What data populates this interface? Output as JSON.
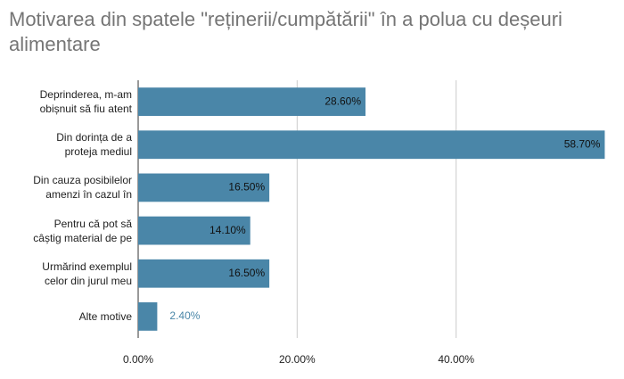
{
  "chart_data": {
    "type": "bar",
    "orientation": "horizontal",
    "title": "Motivarea din spatele \"reținerii/cumpătării\" în a polua cu deșeuri alimentare",
    "categories": [
      "Deprinderea, m-am\nobișnuit să fiu atent",
      "Din dorința de a\nproteja mediul",
      "Din cauza posibilelor\namenzi în cazul în",
      "Pentru că pot să\ncâștig material de pe",
      "Urmărind exemplul\ncelor din jurul meu",
      "Alte motive"
    ],
    "values": [
      28.6,
      58.7,
      16.5,
      14.1,
      16.5,
      2.4
    ],
    "value_labels": [
      "28.60%",
      "58.70%",
      "16.50%",
      "14.10%",
      "16.50%",
      "2.40%"
    ],
    "color": "#4a86a8",
    "xlim": [
      0,
      60
    ],
    "xticks": [
      {
        "value": 0,
        "label": "0.00%"
      },
      {
        "value": 20,
        "label": "20.00%"
      },
      {
        "value": 40,
        "label": "40.00%"
      }
    ],
    "grid": true
  }
}
